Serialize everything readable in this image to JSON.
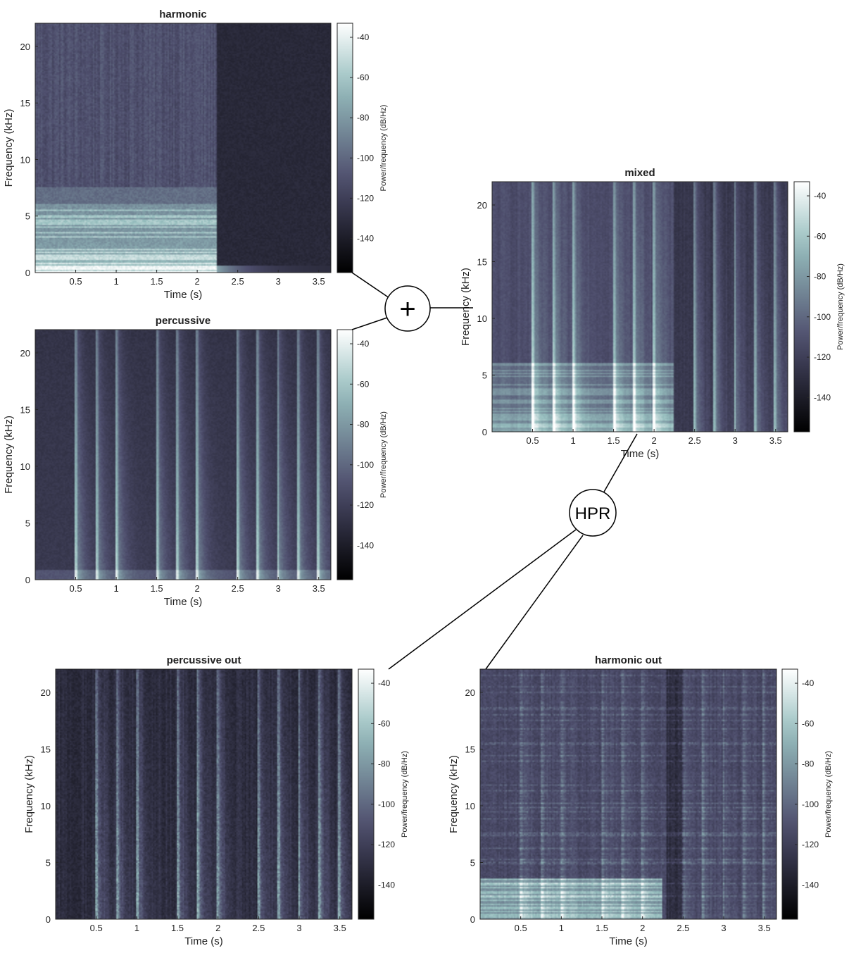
{
  "chart_data": [
    {
      "id": "harmonic",
      "type": "heatmap",
      "title": "harmonic",
      "xlabel": "Time (s)",
      "ylabel": "Frequency (kHz)",
      "xlim": [
        0,
        3.65
      ],
      "ylim": [
        0,
        22.05
      ],
      "xticks": [
        0.5,
        1,
        1.5,
        2,
        2.5,
        3,
        3.5
      ],
      "yticks": [
        0,
        5,
        10,
        15,
        20
      ],
      "colorbar": {
        "label": "Power/frequency (dB/Hz)",
        "ticks": [
          -40,
          -60,
          -80,
          -100,
          -120,
          -140
        ],
        "range": [
          -157,
          -33
        ],
        "colormap": "bone"
      },
      "content": {
        "kind": "harmonic",
        "tonal_end_s": 2.25,
        "strong_band_khz": 6,
        "upper_band_khz": 7.5
      }
    },
    {
      "id": "percussive",
      "type": "heatmap",
      "title": "percussive",
      "xlabel": "Time (s)",
      "ylabel": "Frequency (kHz)",
      "xlim": [
        0,
        3.65
      ],
      "ylim": [
        0,
        22.05
      ],
      "xticks": [
        0.5,
        1,
        1.5,
        2,
        2.5,
        3,
        3.5
      ],
      "yticks": [
        0,
        5,
        10,
        15,
        20
      ],
      "colorbar": {
        "label": "Power/frequency (dB/Hz)",
        "ticks": [
          -40,
          -60,
          -80,
          -100,
          -120,
          -140
        ],
        "range": [
          -157,
          -33
        ],
        "colormap": "bone"
      },
      "content": {
        "kind": "percussive",
        "onsets_s": [
          0.5,
          0.75,
          1.0,
          1.5,
          1.75,
          2.0,
          2.5,
          2.75,
          3.0,
          3.25,
          3.5
        ]
      }
    },
    {
      "id": "mixed",
      "type": "heatmap",
      "title": "mixed",
      "xlabel": "Time (s)",
      "ylabel": "Frequency (kHz)",
      "xlim": [
        0,
        3.65
      ],
      "ylim": [
        0,
        22.05
      ],
      "xticks": [
        0.5,
        1,
        1.5,
        2,
        2.5,
        3,
        3.5
      ],
      "yticks": [
        0,
        5,
        10,
        15,
        20
      ],
      "colorbar": {
        "label": "Power/frequency (dB/Hz)",
        "ticks": [
          -40,
          -60,
          -80,
          -100,
          -120,
          -140
        ],
        "range": [
          -157,
          -33
        ],
        "colormap": "bone"
      },
      "content": {
        "kind": "mixed",
        "tonal_end_s": 2.25,
        "onsets_s": [
          0.5,
          0.75,
          1.0,
          1.5,
          1.75,
          2.0,
          2.5,
          2.75,
          3.0,
          3.25,
          3.5
        ]
      }
    },
    {
      "id": "percussive-out",
      "type": "heatmap",
      "title": "percussive out",
      "xlabel": "Time (s)",
      "ylabel": "Frequency (kHz)",
      "xlim": [
        0,
        3.65
      ],
      "ylim": [
        0,
        22.05
      ],
      "xticks": [
        0.5,
        1,
        1.5,
        2,
        2.5,
        3,
        3.5
      ],
      "yticks": [
        0,
        5,
        10,
        15,
        20
      ],
      "colorbar": {
        "label": "Power/frequency (dB/Hz)",
        "ticks": [
          -40,
          -60,
          -80,
          -100,
          -120,
          -140
        ],
        "range": [
          -157,
          -33
        ],
        "colormap": "bone"
      },
      "content": {
        "kind": "percussive_out",
        "onsets_s": [
          0.5,
          0.75,
          1.0,
          1.5,
          1.75,
          2.0,
          2.5,
          2.75,
          3.0,
          3.25,
          3.5
        ]
      }
    },
    {
      "id": "harmonic-out",
      "type": "heatmap",
      "title": "harmonic out",
      "xlabel": "Time (s)",
      "ylabel": "Frequency (kHz)",
      "xlim": [
        0,
        3.65
      ],
      "ylim": [
        0,
        22.05
      ],
      "xticks": [
        0.5,
        1,
        1.5,
        2,
        2.5,
        3,
        3.5
      ],
      "yticks": [
        0,
        5,
        10,
        15,
        20
      ],
      "colorbar": {
        "label": "Power/frequency (dB/Hz)",
        "ticks": [
          -40,
          -60,
          -80,
          -100,
          -120,
          -140
        ],
        "range": [
          -157,
          -33
        ],
        "colormap": "bone"
      },
      "content": {
        "kind": "harmonic_out",
        "tonal_end_s": 2.25,
        "onsets_s": [
          0.5,
          0.75,
          1.0,
          1.5,
          1.75,
          2.0,
          2.5,
          2.75,
          3.0,
          3.25,
          3.5
        ]
      }
    }
  ],
  "nodes": {
    "sum": {
      "symbol": "+"
    },
    "hpr": {
      "label": "HPR"
    }
  }
}
